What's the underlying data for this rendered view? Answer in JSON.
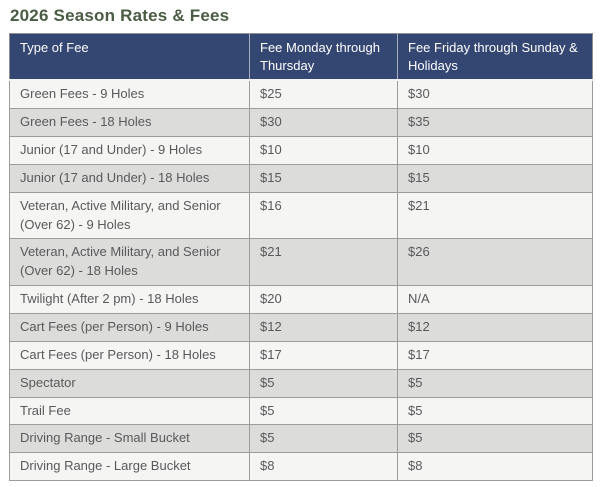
{
  "page": {
    "title": "2026 Season Rates & Fees"
  },
  "table": {
    "columns": [
      "Type of Fee",
      "Fee Monday through Thursday",
      "Fee Friday through Sunday & Holidays"
    ],
    "rows": [
      {
        "type": "Green Fees - 9 Holes",
        "weekday": "$25",
        "weekend": "$30"
      },
      {
        "type": "Green Fees - 18 Holes",
        "weekday": "$30",
        "weekend": "$35"
      },
      {
        "type": "Junior (17 and Under) - 9 Holes",
        "weekday": "$10",
        "weekend": "$10"
      },
      {
        "type": "Junior (17 and Under) - 18 Holes",
        "weekday": "$15",
        "weekend": "$15"
      },
      {
        "type": "Veteran, Active Military, and Senior (Over 62) - 9 Holes",
        "weekday": "$16",
        "weekend": "$21"
      },
      {
        "type": "Veteran, Active Military, and Senior (Over 62) - 18 Holes",
        "weekday": "$21",
        "weekend": "$26"
      },
      {
        "type": "Twilight (After 2 pm) - 18 Holes",
        "weekday": "$20",
        "weekend": "N/A"
      },
      {
        "type": "Cart Fees (per Person) - 9 Holes",
        "weekday": "$12",
        "weekend": "$12"
      },
      {
        "type": "Cart Fees (per Person) - 18 Holes",
        "weekday": "$17",
        "weekend": "$17"
      },
      {
        "type": "Spectator",
        "weekday": "$5",
        "weekend": "$5"
      },
      {
        "type": "Trail Fee",
        "weekday": "$5",
        "weekend": "$5"
      },
      {
        "type": "Driving Range - Small Bucket",
        "weekday": "$5",
        "weekend": "$5"
      },
      {
        "type": "Driving Range - Large Bucket",
        "weekday": "$8",
        "weekend": "$8"
      }
    ]
  },
  "colors": {
    "title_green": "#4a5c44",
    "header_bg": "#344672",
    "header_text": "#ffffff",
    "row_light": "#f5f5f3",
    "row_alt": "#dcdcda",
    "body_text": "#58595b",
    "border": "#9c9c9c"
  }
}
